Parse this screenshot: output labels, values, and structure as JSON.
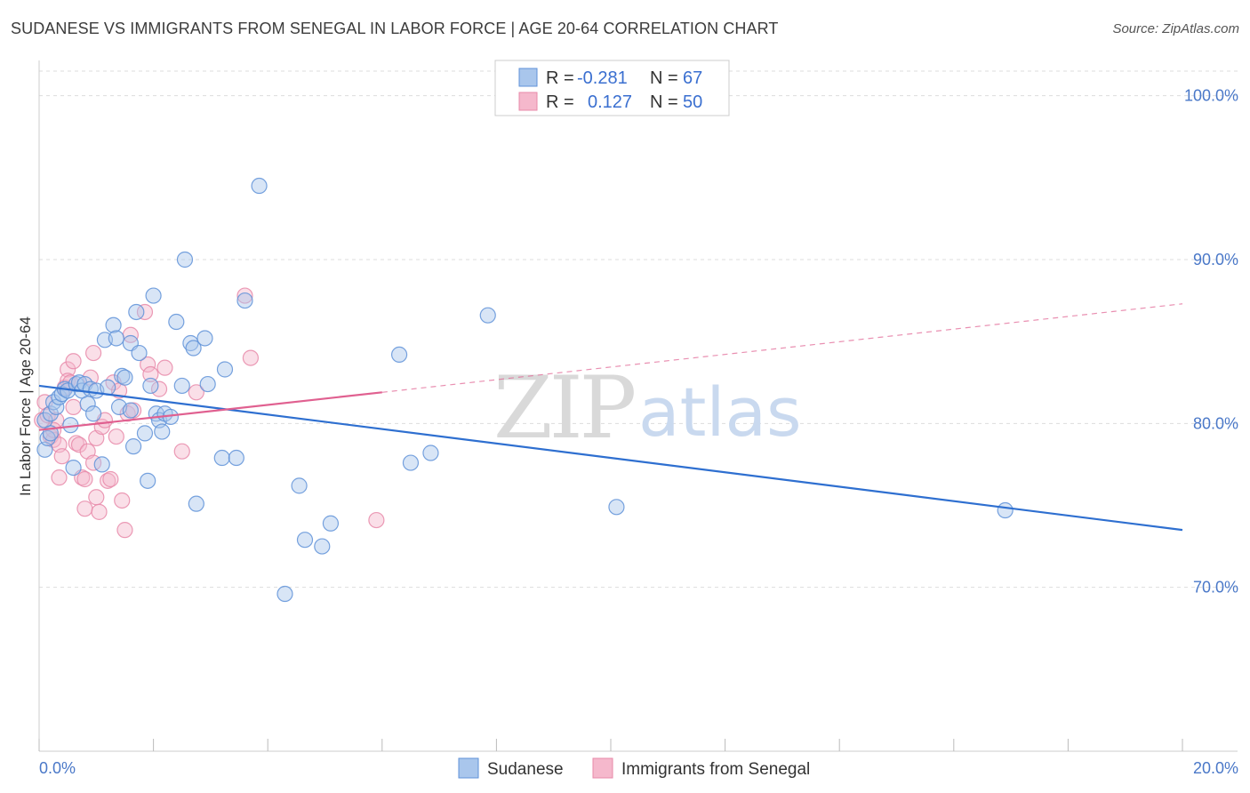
{
  "title": "SUDANESE VS IMMIGRANTS FROM SENEGAL IN LABOR FORCE | AGE 20-64 CORRELATION CHART",
  "source": "Source: ZipAtlas.com",
  "watermark": {
    "zip": "ZIP",
    "atlas": "atlas"
  },
  "colors": {
    "sudanese_fill": "#a9c6ec",
    "sudanese_stroke": "#5f92d8",
    "sudanese_line": "#2e6fd0",
    "senegal_fill": "#f5b8cc",
    "senegal_stroke": "#e88aa9",
    "senegal_line": "#e06090",
    "axis_label": "#4a78c8",
    "grid": "#dddddd"
  },
  "legend": {
    "rows": [
      {
        "r_label": "R =",
        "r_value": "-0.281",
        "n_label": "N =",
        "n_value": "67"
      },
      {
        "r_label": "R =",
        "r_value": "0.127",
        "n_label": "N =",
        "n_value": "50"
      }
    ]
  },
  "chart_data": {
    "type": "scatter",
    "title": "SUDANESE VS IMMIGRANTS FROM SENEGAL IN LABOR FORCE | AGE 20-64 CORRELATION CHART",
    "xlabel": "",
    "ylabel": "In Labor Force | Age 20-64",
    "xlim": [
      0,
      20
    ],
    "ylim": [
      60,
      101.5
    ],
    "x_tick_labels": [
      "0.0%",
      "20.0%"
    ],
    "y_ticks": [
      70,
      80,
      90,
      100
    ],
    "y_tick_labels": [
      "70.0%",
      "80.0%",
      "90.0%",
      "100.0%"
    ],
    "grid": true,
    "legend_position": "top-center",
    "series": [
      {
        "name": "Sudanese",
        "r": -0.281,
        "n": 67,
        "trend": {
          "x": [
            0,
            20
          ],
          "y": [
            82.3,
            73.5
          ]
        },
        "points": [
          [
            0.1,
            78.4
          ],
          [
            0.1,
            80.2
          ],
          [
            0.15,
            79.1
          ],
          [
            0.2,
            79.4
          ],
          [
            0.2,
            80.6
          ],
          [
            0.25,
            81.3
          ],
          [
            0.3,
            81.0
          ],
          [
            0.35,
            81.6
          ],
          [
            0.4,
            81.8
          ],
          [
            0.45,
            82.1
          ],
          [
            0.5,
            82.0
          ],
          [
            0.55,
            79.9
          ],
          [
            0.6,
            77.3
          ],
          [
            0.65,
            82.4
          ],
          [
            0.7,
            82.5
          ],
          [
            0.75,
            82.0
          ],
          [
            0.8,
            82.4
          ],
          [
            0.85,
            81.2
          ],
          [
            0.9,
            82.1
          ],
          [
            0.95,
            80.6
          ],
          [
            1.0,
            82.0
          ],
          [
            1.1,
            77.5
          ],
          [
            1.15,
            85.1
          ],
          [
            1.2,
            82.2
          ],
          [
            1.3,
            86.0
          ],
          [
            1.35,
            85.2
          ],
          [
            1.4,
            81.0
          ],
          [
            1.45,
            82.9
          ],
          [
            1.5,
            82.8
          ],
          [
            1.6,
            80.8
          ],
          [
            1.6,
            84.9
          ],
          [
            1.65,
            78.6
          ],
          [
            1.7,
            86.8
          ],
          [
            1.75,
            84.3
          ],
          [
            1.85,
            79.4
          ],
          [
            1.9,
            76.5
          ],
          [
            1.95,
            82.3
          ],
          [
            2.0,
            87.8
          ],
          [
            2.05,
            80.6
          ],
          [
            2.1,
            80.2
          ],
          [
            2.15,
            79.5
          ],
          [
            2.2,
            80.6
          ],
          [
            2.3,
            80.4
          ],
          [
            2.4,
            86.2
          ],
          [
            2.5,
            82.3
          ],
          [
            2.55,
            90.0
          ],
          [
            2.65,
            84.9
          ],
          [
            2.7,
            84.6
          ],
          [
            2.75,
            75.1
          ],
          [
            2.9,
            85.2
          ],
          [
            2.95,
            82.4
          ],
          [
            3.2,
            77.9
          ],
          [
            3.25,
            83.3
          ],
          [
            3.45,
            77.9
          ],
          [
            3.6,
            87.5
          ],
          [
            3.85,
            94.5
          ],
          [
            4.3,
            69.6
          ],
          [
            4.55,
            76.2
          ],
          [
            4.65,
            72.9
          ],
          [
            4.95,
            72.5
          ],
          [
            5.1,
            73.9
          ],
          [
            6.3,
            84.2
          ],
          [
            6.5,
            77.6
          ],
          [
            6.85,
            78.2
          ],
          [
            7.85,
            86.6
          ],
          [
            10.1,
            74.9
          ],
          [
            16.9,
            74.7
          ]
        ]
      },
      {
        "name": "Immigrants from Senegal",
        "r": 0.127,
        "n": 50,
        "trend": {
          "x": [
            0,
            6
          ],
          "y": [
            79.6,
            81.9
          ]
        },
        "trend_dashed": {
          "x": [
            6,
            20
          ],
          "y": [
            81.9,
            87.3
          ]
        },
        "points": [
          [
            0.05,
            80.2
          ],
          [
            0.1,
            81.3
          ],
          [
            0.15,
            80.5
          ],
          [
            0.2,
            79.2
          ],
          [
            0.25,
            79.0
          ],
          [
            0.3,
            80.2
          ],
          [
            0.35,
            76.7
          ],
          [
            0.35,
            78.7
          ],
          [
            0.4,
            78.0
          ],
          [
            0.45,
            82.2
          ],
          [
            0.5,
            83.3
          ],
          [
            0.5,
            82.6
          ],
          [
            0.55,
            82.5
          ],
          [
            0.6,
            81.0
          ],
          [
            0.6,
            83.8
          ],
          [
            0.65,
            78.8
          ],
          [
            0.7,
            78.7
          ],
          [
            0.75,
            76.7
          ],
          [
            0.8,
            76.6
          ],
          [
            0.8,
            74.8
          ],
          [
            0.85,
            78.3
          ],
          [
            0.9,
            82.8
          ],
          [
            0.95,
            84.3
          ],
          [
            0.95,
            77.6
          ],
          [
            1.0,
            75.5
          ],
          [
            1.0,
            79.1
          ],
          [
            1.05,
            74.6
          ],
          [
            1.1,
            79.8
          ],
          [
            1.15,
            80.2
          ],
          [
            1.2,
            76.5
          ],
          [
            1.25,
            76.6
          ],
          [
            1.3,
            82.5
          ],
          [
            1.35,
            79.2
          ],
          [
            1.4,
            82.0
          ],
          [
            1.45,
            75.3
          ],
          [
            1.5,
            73.5
          ],
          [
            1.55,
            80.6
          ],
          [
            1.6,
            85.4
          ],
          [
            1.65,
            80.8
          ],
          [
            1.85,
            86.8
          ],
          [
            1.9,
            83.6
          ],
          [
            1.95,
            83.0
          ],
          [
            2.1,
            82.1
          ],
          [
            2.2,
            83.4
          ],
          [
            2.5,
            78.3
          ],
          [
            2.75,
            81.9
          ],
          [
            3.6,
            87.8
          ],
          [
            3.7,
            84.0
          ],
          [
            5.9,
            74.1
          ],
          [
            0.25,
            79.6
          ]
        ]
      }
    ]
  },
  "bottom_legend": [
    {
      "label": "Sudanese"
    },
    {
      "label": "Immigrants from Senegal"
    }
  ]
}
